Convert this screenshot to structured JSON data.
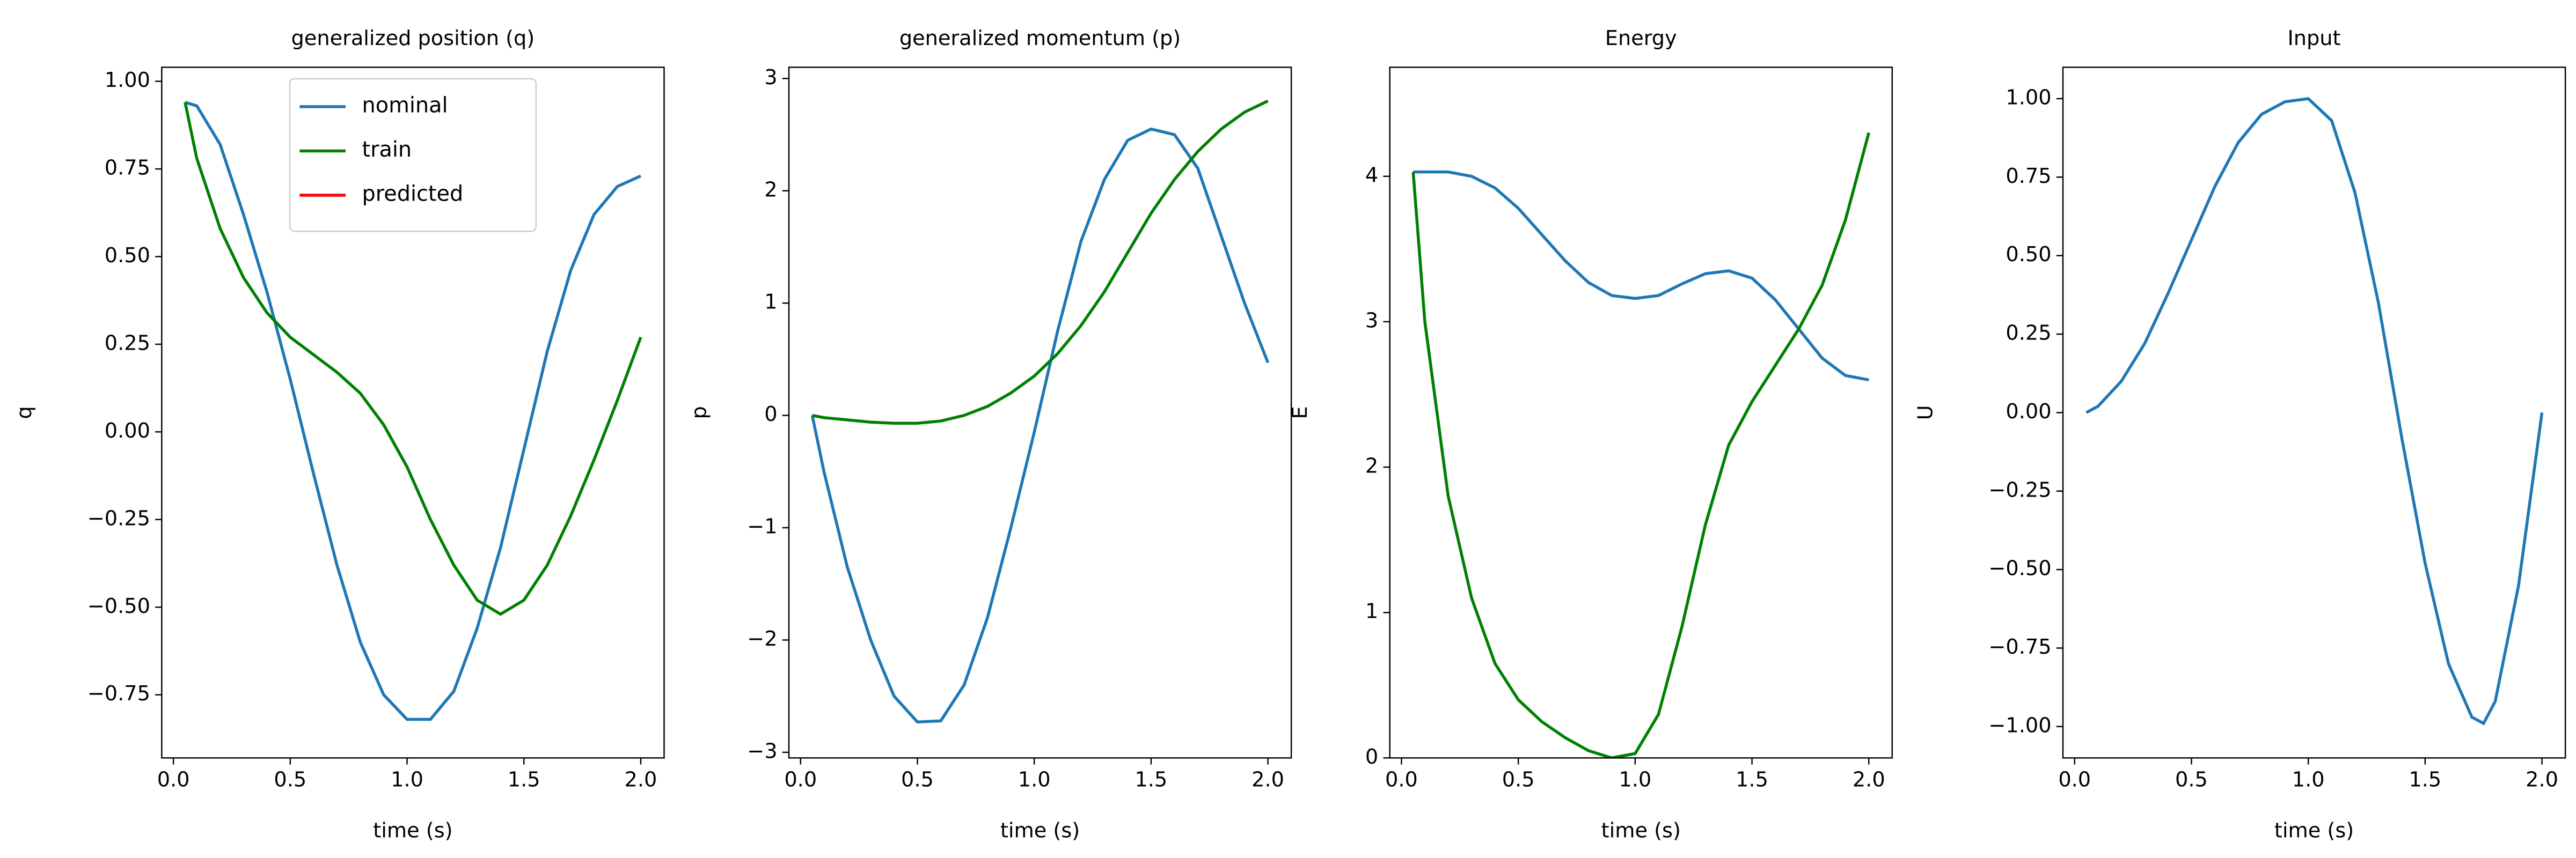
{
  "chart_data": [
    {
      "type": "line",
      "title": "generalized position (q)",
      "x_label": "time (s)",
      "y_label": "q",
      "x": [
        0.05,
        0.1,
        0.2,
        0.3,
        0.4,
        0.5,
        0.6,
        0.7,
        0.8,
        0.9,
        1.0,
        1.1,
        1.2,
        1.3,
        1.4,
        1.5,
        1.6,
        1.7,
        1.8,
        1.9,
        2.0
      ],
      "series": [
        {
          "name": "nominal",
          "color": "#1f77b4",
          "values": [
            0.94,
            0.93,
            0.82,
            0.62,
            0.4,
            0.15,
            -0.12,
            -0.38,
            -0.6,
            -0.75,
            -0.82,
            -0.82,
            -0.74,
            -0.56,
            -0.33,
            -0.05,
            0.23,
            0.46,
            0.62,
            0.7,
            0.73
          ]
        },
        {
          "name": "train",
          "color": "#008000",
          "values": [
            0.94,
            0.78,
            0.58,
            0.44,
            0.34,
            0.27,
            0.22,
            0.17,
            0.11,
            0.02,
            -0.1,
            -0.25,
            -0.38,
            -0.48,
            -0.52,
            -0.48,
            -0.38,
            -0.24,
            -0.08,
            0.09,
            0.27
          ]
        },
        {
          "name": "predicted",
          "color": "#ff0000",
          "values": [
            null,
            null,
            null,
            null,
            null,
            null,
            null,
            null,
            null,
            null,
            null,
            null,
            null,
            null,
            null,
            null,
            null,
            null,
            null,
            null,
            null
          ]
        }
      ],
      "legend": "upper center",
      "xlim": [
        -0.05,
        2.1
      ],
      "xticks": [
        {
          "value": 0,
          "label": "0.0"
        },
        {
          "value": 0.5,
          "label": "0.5"
        },
        {
          "value": 1,
          "label": "1.0"
        },
        {
          "value": 1.5,
          "label": "1.5"
        },
        {
          "value": 2,
          "label": "2.0"
        }
      ],
      "ylim": [
        -0.93,
        1.04
      ],
      "yticks": [
        {
          "value": -0.75,
          "label": "−0.75"
        },
        {
          "value": -0.5,
          "label": "−0.50"
        },
        {
          "value": -0.25,
          "label": "−0.25"
        },
        {
          "value": 0,
          "label": "0.00"
        },
        {
          "value": 0.25,
          "label": "0.25"
        },
        {
          "value": 0.5,
          "label": "0.50"
        },
        {
          "value": 0.75,
          "label": "0.75"
        },
        {
          "value": 1,
          "label": "1.00"
        }
      ]
    },
    {
      "type": "line",
      "title": "generalized momentum (p)",
      "x_label": "time (s)",
      "y_label": "p",
      "x": [
        0.05,
        0.1,
        0.2,
        0.3,
        0.4,
        0.5,
        0.6,
        0.7,
        0.8,
        0.9,
        1.0,
        1.1,
        1.2,
        1.3,
        1.4,
        1.5,
        1.6,
        1.7,
        1.8,
        1.9,
        2.0
      ],
      "series": [
        {
          "color": "#1f77b4",
          "values": [
            0,
            -0.5,
            -1.35,
            -2.0,
            -2.5,
            -2.73,
            -2.72,
            -2.4,
            -1.8,
            -1.0,
            -0.15,
            0.75,
            1.55,
            2.1,
            2.45,
            2.55,
            2.5,
            2.2,
            1.6,
            1.0,
            0.47
          ]
        },
        {
          "color": "#008000",
          "values": [
            0,
            -0.02,
            -0.04,
            -0.06,
            -0.07,
            -0.07,
            -0.05,
            0.0,
            0.08,
            0.2,
            0.35,
            0.55,
            0.8,
            1.1,
            1.45,
            1.8,
            2.1,
            2.35,
            2.55,
            2.7,
            2.8
          ]
        }
      ],
      "xlim": [
        -0.05,
        2.1
      ],
      "xticks": [
        {
          "value": 0,
          "label": "0.0"
        },
        {
          "value": 0.5,
          "label": "0.5"
        },
        {
          "value": 1,
          "label": "1.0"
        },
        {
          "value": 1.5,
          "label": "1.5"
        },
        {
          "value": 2,
          "label": "2.0"
        }
      ],
      "ylim": [
        -3.05,
        3.1
      ],
      "yticks": [
        {
          "value": -3,
          "label": "−3"
        },
        {
          "value": -2,
          "label": "−2"
        },
        {
          "value": -1,
          "label": "−1"
        },
        0,
        1,
        2,
        3
      ]
    },
    {
      "type": "line",
      "title": "Energy",
      "x_label": "time (s)",
      "y_label": "E",
      "x": [
        0.05,
        0.1,
        0.2,
        0.3,
        0.4,
        0.5,
        0.6,
        0.7,
        0.8,
        0.9,
        1.0,
        1.1,
        1.2,
        1.3,
        1.4,
        1.5,
        1.6,
        1.7,
        1.8,
        1.9,
        2.0
      ],
      "series": [
        {
          "color": "#1f77b4",
          "values": [
            4.03,
            4.03,
            4.03,
            4.0,
            3.92,
            3.78,
            3.6,
            3.42,
            3.27,
            3.18,
            3.16,
            3.18,
            3.26,
            3.33,
            3.35,
            3.3,
            3.15,
            2.95,
            2.75,
            2.63,
            2.6
          ]
        },
        {
          "color": "#008000",
          "values": [
            4.03,
            3.0,
            1.8,
            1.1,
            0.65,
            0.4,
            0.25,
            0.14,
            0.05,
            0.0,
            0.03,
            0.3,
            0.9,
            1.6,
            2.15,
            2.45,
            2.7,
            2.95,
            3.25,
            3.7,
            4.3
          ]
        }
      ],
      "xlim": [
        -0.05,
        2.1
      ],
      "xticks": [
        {
          "value": 0,
          "label": "0.0"
        },
        {
          "value": 0.5,
          "label": "0.5"
        },
        {
          "value": 1,
          "label": "1.0"
        },
        {
          "value": 1.5,
          "label": "1.5"
        },
        {
          "value": 2,
          "label": "2.0"
        }
      ],
      "ylim": [
        0,
        4.75
      ],
      "yticks": [
        0,
        1,
        2,
        3,
        4
      ]
    },
    {
      "type": "line",
      "title": "Input",
      "x_label": "time (s)",
      "y_label": "U",
      "x": [
        0.05,
        0.1,
        0.2,
        0.3,
        0.4,
        0.5,
        0.6,
        0.7,
        0.8,
        0.9,
        1.0,
        1.1,
        1.2,
        1.3,
        1.4,
        1.5,
        1.6,
        1.7,
        1.75,
        1.8,
        1.9,
        2.0
      ],
      "series": [
        {
          "color": "#1f77b4",
          "values": [
            0.0,
            0.02,
            0.1,
            0.22,
            0.38,
            0.55,
            0.72,
            0.86,
            0.95,
            0.99,
            1.0,
            0.93,
            0.7,
            0.35,
            -0.08,
            -0.48,
            -0.8,
            -0.97,
            -0.99,
            -0.92,
            -0.55,
            0.0
          ]
        }
      ],
      "xlim": [
        -0.05,
        2.1
      ],
      "xticks": [
        {
          "value": 0,
          "label": "0.0"
        },
        {
          "value": 0.5,
          "label": "0.5"
        },
        {
          "value": 1,
          "label": "1.0"
        },
        {
          "value": 1.5,
          "label": "1.5"
        },
        {
          "value": 2,
          "label": "2.0"
        }
      ],
      "ylim": [
        -1.1,
        1.1
      ],
      "yticks": [
        {
          "value": -1,
          "label": "−1.00"
        },
        {
          "value": -0.75,
          "label": "−0.75"
        },
        {
          "value": -0.5,
          "label": "−0.50"
        },
        {
          "value": -0.25,
          "label": "−0.25"
        },
        {
          "value": 0,
          "label": "0.00"
        },
        {
          "value": 0.25,
          "label": "0.25"
        },
        {
          "value": 0.5,
          "label": "0.50"
        },
        {
          "value": 0.75,
          "label": "0.75"
        },
        {
          "value": 1,
          "label": "1.00"
        }
      ]
    }
  ]
}
